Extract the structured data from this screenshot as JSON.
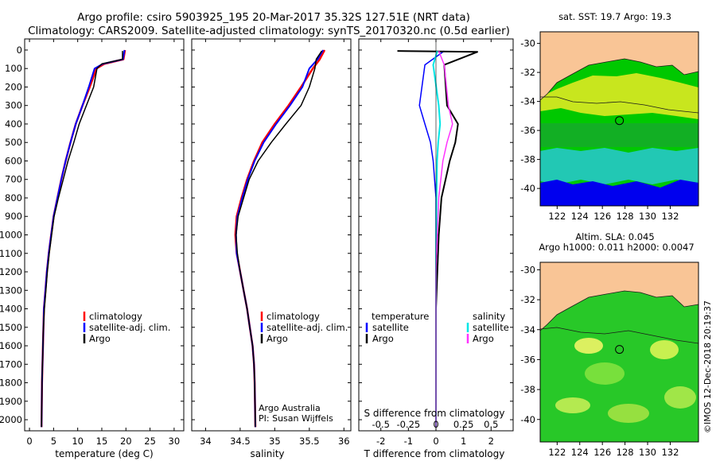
{
  "header": {
    "title_line1": "Argo profile: csiro 5903925_195 20-Mar-2017 35.32S 127.51E (NRT data)",
    "title_line2": "Climatology: CARS2009. Satellite-adjusted climatology: synTS_20170320.nc (0.5d earlier)"
  },
  "depth_axis": {
    "ticks": [
      "0",
      "100",
      "200",
      "300",
      "400",
      "500",
      "600",
      "700",
      "800",
      "900",
      "1000",
      "1100",
      "1200",
      "1300",
      "1400",
      "1500",
      "1600",
      "1700",
      "1800",
      "1900",
      "2000"
    ],
    "range": [
      -60,
      2060
    ]
  },
  "panels": {
    "temperature": {
      "xlabel": "temperature (deg C)",
      "xticks": [
        "0",
        "5",
        "10",
        "15",
        "20",
        "25",
        "30"
      ],
      "legend": [
        "climatology",
        "satellite-adj. clim.",
        "Argo"
      ]
    },
    "salinity": {
      "xlabel": "salinity",
      "xticks": [
        "34",
        "34.5",
        "35",
        "35.5",
        "36"
      ],
      "legend": [
        "climatology",
        "satellite-adj. clim.",
        "Argo"
      ],
      "credit_line1": "Argo Australia",
      "credit_line2": "PI: Susan Wijffels"
    },
    "difference": {
      "xlabel": "T difference from climatology",
      "xticks": [
        "-2",
        "-1",
        "0",
        "1",
        "2"
      ],
      "top_label": "S difference from climatology",
      "top_ticks": [
        "-0.5",
        "-0.25",
        "0",
        "0.25",
        "0.5"
      ],
      "legend_t_title": "temperature",
      "legend_s_title": "salinity",
      "legend_t": [
        "satellite",
        "Argo"
      ],
      "legend_s": [
        "satellite",
        "Argo"
      ]
    }
  },
  "maps": {
    "sst_label": "sat. SST: 19.7 Argo: 19.3",
    "sla_label1": "Altim. SLA: 0.045",
    "sla_label2": "Argo h1000: 0.011 h2000: 0.0047",
    "lat_ticks": [
      "-30",
      "-32",
      "-34",
      "-36",
      "-38",
      "-40"
    ],
    "lon_ticks": [
      "122",
      "124",
      "126",
      "128",
      "130",
      "132"
    ],
    "float_position": {
      "lon": 127.51,
      "lat": -35.32
    },
    "watermark": "©IMOS 12-Dec-2018 20:19:37"
  },
  "colors": {
    "climatology": "#ff0000",
    "satellite": "#0000ff",
    "argo": "#000000",
    "sat_salinity": "#00e6e6",
    "argo_salinity": "#ff33ff",
    "land": "#f9c596"
  },
  "chart_data": [
    {
      "type": "line",
      "title": "",
      "xlabel": "temperature (deg C)",
      "ylabel": "",
      "xlim": [
        -1,
        32
      ],
      "ylim": [
        2060,
        -60
      ],
      "series": [
        {
          "name": "climatology",
          "x": [
            19.8,
            19.5,
            15.5,
            13.9,
            12.5,
            11.0,
            9.6,
            8.5,
            7.5,
            6.6,
            5.8,
            5.0,
            4.5,
            4.0,
            3.6,
            3.3,
            3.0,
            2.9,
            2.8,
            2.6,
            2.5
          ],
          "y": [
            0,
            50,
            75,
            100,
            200,
            300,
            400,
            500,
            600,
            700,
            800,
            900,
            1000,
            1100,
            1200,
            1300,
            1400,
            1500,
            1600,
            1800,
            2040
          ]
        },
        {
          "name": "satellite-adj. clim.",
          "x": [
            19.7,
            19.4,
            15.2,
            13.5,
            12.3,
            11.0,
            9.6,
            8.5,
            7.5,
            6.6,
            5.8,
            5.0,
            4.5,
            4.0,
            3.6,
            3.3,
            3.0,
            2.9,
            2.8,
            2.6,
            2.5
          ],
          "y": [
            0,
            50,
            75,
            100,
            200,
            300,
            400,
            500,
            600,
            700,
            800,
            900,
            1000,
            1100,
            1200,
            1300,
            1400,
            1500,
            1600,
            1800,
            2040
          ]
        },
        {
          "name": "Argo",
          "x": [
            19.3,
            19.3,
            15.0,
            14.0,
            13.3,
            11.8,
            10.3,
            9.2,
            8.0,
            7.0,
            6.0,
            5.1,
            4.6,
            4.1,
            3.7,
            3.4,
            3.1,
            2.9,
            2.8,
            2.6,
            2.5
          ],
          "y": [
            5,
            50,
            75,
            100,
            200,
            300,
            400,
            500,
            600,
            700,
            800,
            900,
            1000,
            1100,
            1200,
            1300,
            1400,
            1500,
            1600,
            1800,
            2040
          ]
        }
      ]
    },
    {
      "type": "line",
      "title": "",
      "xlabel": "salinity",
      "ylabel": "",
      "xlim": [
        33.8,
        36.1
      ],
      "ylim": [
        2060,
        -60
      ],
      "series": [
        {
          "name": "climatology",
          "x": [
            35.72,
            35.65,
            35.55,
            35.38,
            35.2,
            35.0,
            34.82,
            34.7,
            34.6,
            34.52,
            34.45,
            34.43,
            34.45,
            34.5,
            34.55,
            34.6,
            34.64,
            34.68,
            34.7,
            34.71,
            34.72
          ],
          "y": [
            0,
            50,
            100,
            200,
            300,
            400,
            500,
            600,
            700,
            800,
            900,
            1000,
            1100,
            1200,
            1300,
            1400,
            1500,
            1600,
            1700,
            1800,
            2040
          ]
        },
        {
          "name": "satellite-adj. clim.",
          "x": [
            35.7,
            35.62,
            35.5,
            35.4,
            35.22,
            35.02,
            34.84,
            34.71,
            34.61,
            34.53,
            34.46,
            34.44,
            34.45,
            34.5,
            34.55,
            34.6,
            34.64,
            34.68,
            34.7,
            34.71,
            34.72
          ],
          "y": [
            0,
            50,
            100,
            200,
            300,
            400,
            500,
            600,
            700,
            800,
            900,
            1000,
            1100,
            1200,
            1300,
            1400,
            1500,
            1600,
            1700,
            1800,
            2040
          ]
        },
        {
          "name": "Argo",
          "x": [
            35.68,
            35.6,
            35.58,
            35.5,
            35.38,
            35.16,
            34.95,
            34.76,
            34.63,
            34.55,
            34.47,
            34.44,
            34.46,
            34.5,
            34.55,
            34.6,
            34.64,
            34.68,
            34.7,
            34.71,
            34.72
          ],
          "y": [
            5,
            50,
            100,
            200,
            300,
            400,
            500,
            600,
            700,
            800,
            900,
            1000,
            1100,
            1200,
            1300,
            1400,
            1500,
            1600,
            1700,
            1800,
            2040
          ]
        }
      ]
    },
    {
      "type": "line",
      "title": "",
      "xlabel": "T difference from climatology",
      "ylabel": "",
      "xlim": [
        -2.8,
        2.8
      ],
      "ylim": [
        2060,
        -60
      ],
      "series": [
        {
          "name": "satellite",
          "x": [
            0.3,
            -0.4,
            -0.6,
            -0.4,
            -0.2,
            -0.1,
            0.0,
            0.0,
            0.0,
            0.0,
            0.0
          ],
          "y": [
            5,
            80,
            300,
            400,
            500,
            600,
            800,
            1000,
            1200,
            1600,
            2040
          ]
        },
        {
          "name": "Argo",
          "x": [
            -1.4,
            1.5,
            0.3,
            0.4,
            0.8,
            0.7,
            0.5,
            0.2,
            0.1,
            0.0,
            0.0
          ],
          "y": [
            5,
            10,
            80,
            300,
            400,
            500,
            600,
            800,
            1000,
            1400,
            2040
          ]
        },
        {
          "name": "satellite",
          "x": [
            0.05,
            -0.1,
            0.1,
            0.15,
            0.08,
            0.04,
            0.02,
            0.0,
            0.0
          ],
          "y": [
            5,
            80,
            300,
            400,
            500,
            600,
            800,
            1200,
            2040
          ]
        },
        {
          "name": "Argo",
          "x": [
            0.1,
            0.3,
            0.45,
            0.6,
            0.4,
            0.25,
            0.1,
            0.0,
            0.0
          ],
          "y": [
            5,
            80,
            300,
            400,
            500,
            600,
            800,
            1200,
            2040
          ]
        }
      ]
    }
  ]
}
